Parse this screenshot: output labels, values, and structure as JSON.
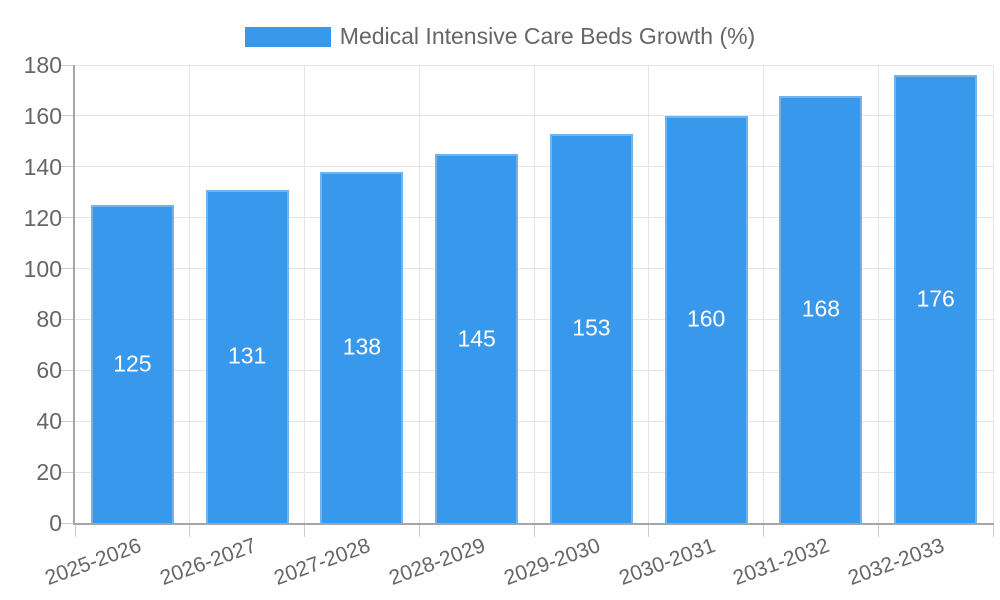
{
  "legend": {
    "label": "Medical Intensive Care Beds Growth (%)"
  },
  "chart_data": {
    "type": "bar",
    "title": "Medical Intensive Care Beds Growth (%)",
    "categories": [
      "2025-2026",
      "2026-2027",
      "2027-2028",
      "2028-2029",
      "2029-2030",
      "2030-2031",
      "2031-2032",
      "2032-2033"
    ],
    "series": [
      {
        "name": "Medical Intensive Care Beds Growth (%)",
        "values": [
          125,
          131,
          138,
          145,
          153,
          160,
          168,
          176
        ]
      }
    ],
    "values": [
      125,
      131,
      138,
      145,
      153,
      160,
      168,
      176
    ],
    "bar_value_labels_visible": true,
    "xlabel": "",
    "ylabel": "",
    "ylim": [
      0,
      180
    ],
    "yticks": [
      0,
      20,
      40,
      60,
      80,
      100,
      120,
      140,
      160,
      180
    ],
    "grid": true,
    "legend_position": "top",
    "x_label_rotation_deg": -20
  },
  "colors": {
    "bar_fill": "#3898ec",
    "bar_edge_highlight": "rgba(255,255,255,0.28)",
    "bar_value_text": "#ffffff",
    "axis_line": "#a5a5a5",
    "gridline": "#e5e5e5",
    "tick_mark": "#cccccc",
    "axis_text": "#666666",
    "background": "#ffffff"
  }
}
